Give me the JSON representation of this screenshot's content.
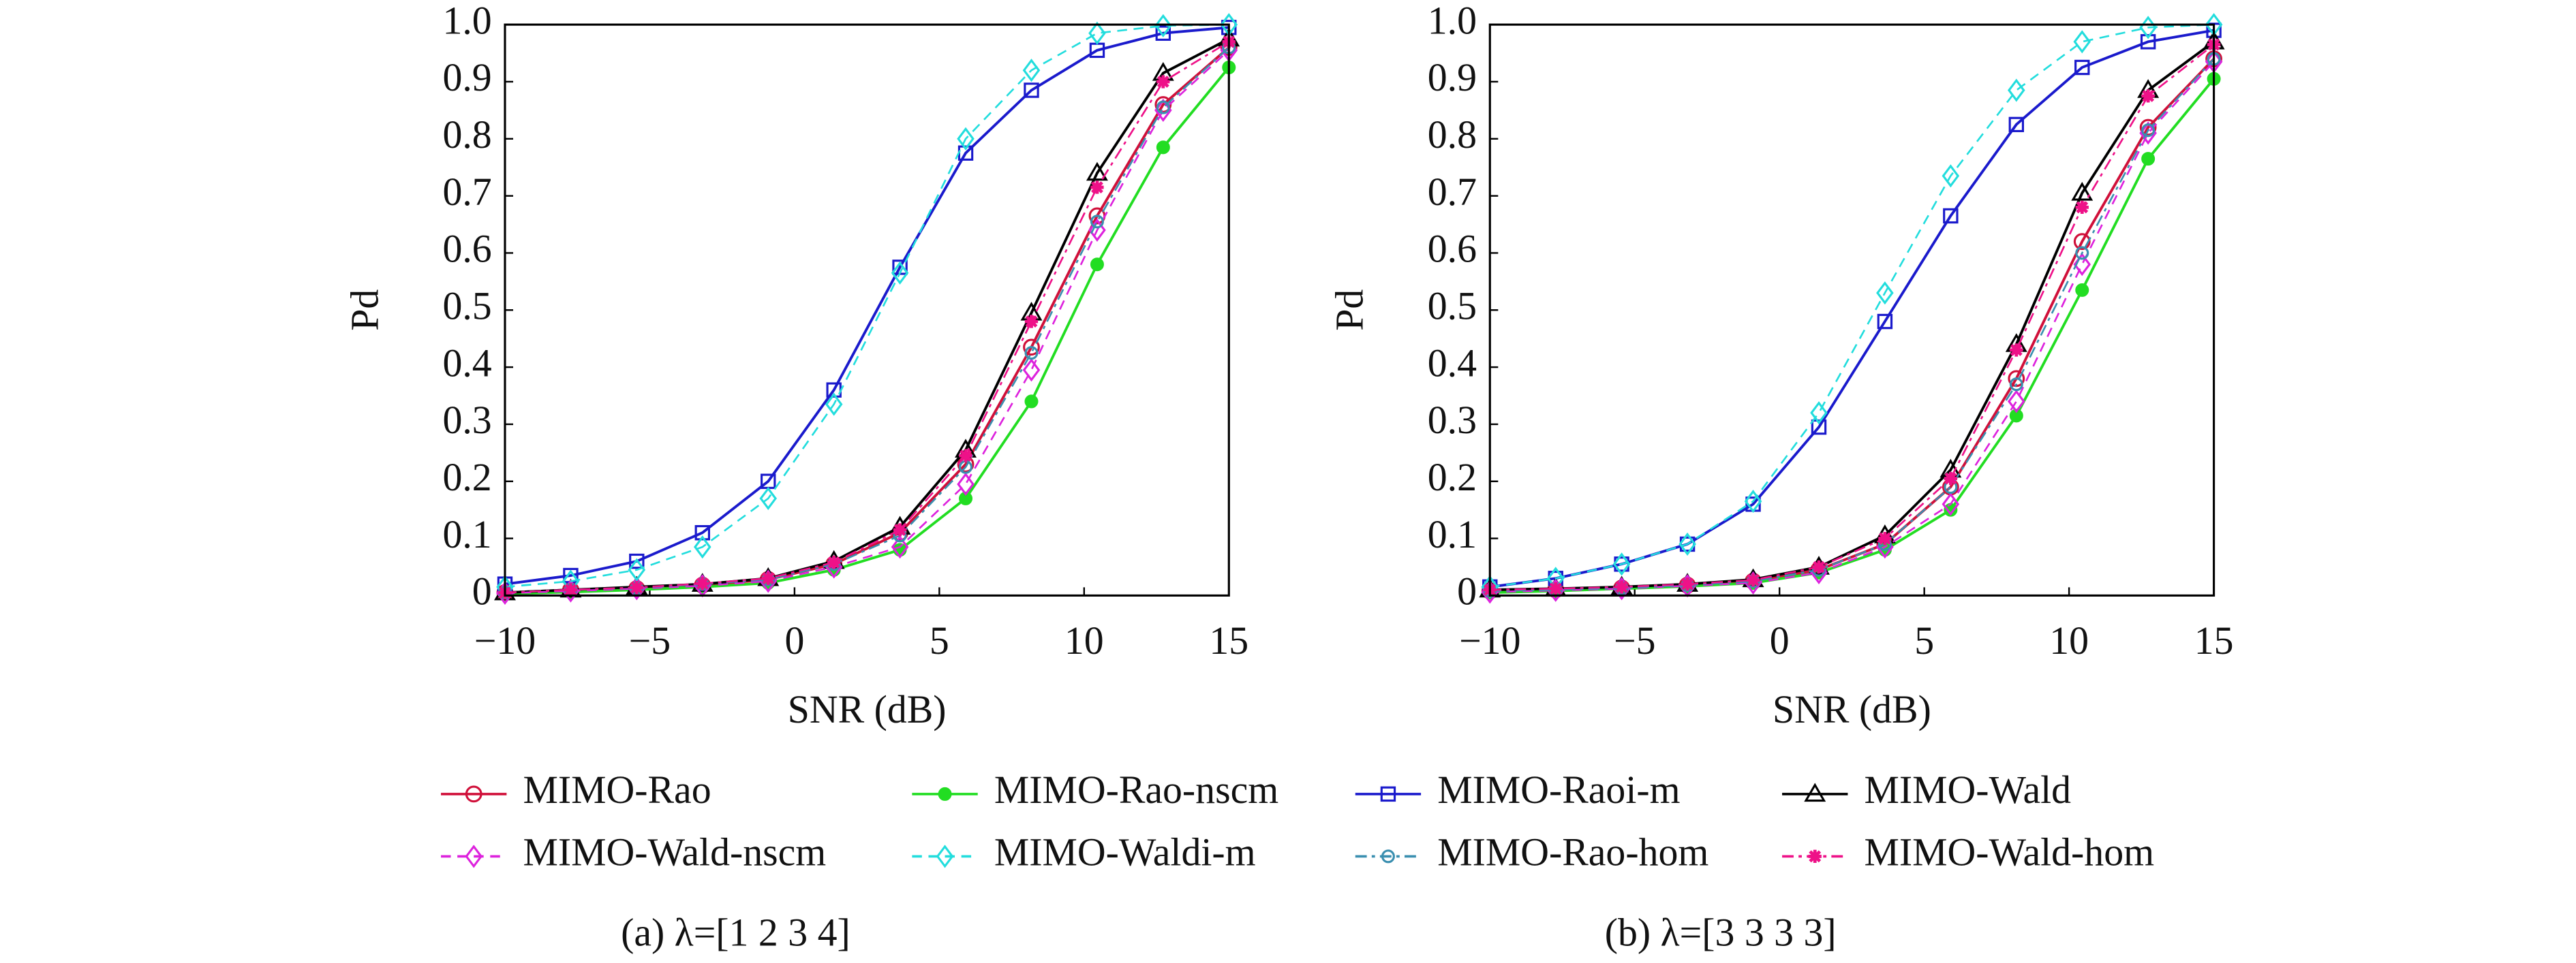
{
  "chart_data": [
    {
      "type": "line",
      "caption": "(a) λ=[1 2 3 4]",
      "xlabel": "SNR (dB)",
      "ylabel": "Pd",
      "x": [
        -10,
        -7.73,
        -5.45,
        -3.18,
        -0.91,
        1.36,
        3.64,
        5.91,
        8.18,
        10.45,
        12.73,
        15
      ],
      "xlim": [
        -10,
        15
      ],
      "ylim": [
        0,
        1
      ],
      "xticks": [
        {
          "value": -10,
          "label": "−10"
        },
        {
          "value": -5,
          "label": "−5"
        },
        0,
        5,
        10,
        15
      ],
      "yticks": [
        0,
        0.1,
        0.2,
        0.3,
        0.4,
        0.5,
        0.6,
        0.7,
        0.8,
        0.9,
        {
          "value": 1,
          "label": "1.0"
        }
      ],
      "series": [
        {
          "name": "MIMO-Rao",
          "color": "#d0103a",
          "marker": "circle",
          "dash": "solid",
          "values": [
            0.005,
            0.01,
            0.012,
            0.018,
            0.028,
            0.055,
            0.11,
            0.23,
            0.435,
            0.665,
            0.86,
            0.96
          ]
        },
        {
          "name": "MIMO-Rao-nscm",
          "color": "#22dd22",
          "marker": "dot",
          "dash": "solid",
          "values": [
            0.003,
            0.006,
            0.01,
            0.015,
            0.022,
            0.045,
            0.08,
            0.17,
            0.34,
            0.58,
            0.785,
            0.925
          ]
        },
        {
          "name": "MIMO-Raoi-m",
          "color": "#1a1acc",
          "marker": "square",
          "dash": "solid",
          "values": [
            0.02,
            0.035,
            0.06,
            0.11,
            0.2,
            0.36,
            0.575,
            0.775,
            0.885,
            0.955,
            0.985,
            0.995
          ]
        },
        {
          "name": "MIMO-Wald",
          "color": "#000000",
          "marker": "triangle",
          "dash": "solid",
          "values": [
            0.005,
            0.01,
            0.015,
            0.02,
            0.03,
            0.06,
            0.12,
            0.255,
            0.495,
            0.74,
            0.915,
            0.975
          ]
        },
        {
          "name": "MIMO-Wald-nscm",
          "color": "#dd22dd",
          "marker": "diamond",
          "dash": "dashed",
          "values": [
            0.004,
            0.008,
            0.012,
            0.017,
            0.025,
            0.05,
            0.085,
            0.195,
            0.395,
            0.64,
            0.85,
            0.955
          ]
        },
        {
          "name": "MIMO-Waldi-m",
          "color": "#22dddd",
          "marker": "diamond",
          "dash": "dashed",
          "values": [
            0.015,
            0.025,
            0.045,
            0.085,
            0.17,
            0.335,
            0.565,
            0.8,
            0.92,
            0.985,
            0.998,
            1.0
          ]
        },
        {
          "name": "MIMO-Rao-hom",
          "color": "#3a8fb0",
          "marker": "smallcircle",
          "dash": "dashdot",
          "values": [
            0.005,
            0.01,
            0.013,
            0.02,
            0.028,
            0.055,
            0.105,
            0.225,
            0.425,
            0.655,
            0.855,
            0.96
          ]
        },
        {
          "name": "MIMO-Wald-hom",
          "color": "#ee1188",
          "marker": "star",
          "dash": "dashdot",
          "values": [
            0.005,
            0.01,
            0.014,
            0.021,
            0.03,
            0.058,
            0.115,
            0.245,
            0.48,
            0.715,
            0.9,
            0.97
          ]
        }
      ]
    },
    {
      "type": "line",
      "caption": "(b) λ=[3 3 3 3]",
      "xlabel": "SNR (dB)",
      "ylabel": "Pd",
      "x": [
        -10,
        -7.73,
        -5.45,
        -3.18,
        -0.91,
        1.36,
        3.64,
        5.91,
        8.18,
        10.45,
        12.73,
        15
      ],
      "xlim": [
        -10,
        15
      ],
      "ylim": [
        0,
        1
      ],
      "xticks": [
        {
          "value": -10,
          "label": "−10"
        },
        {
          "value": -5,
          "label": "−5"
        },
        0,
        5,
        10,
        15
      ],
      "yticks": [
        0,
        0.1,
        0.2,
        0.3,
        0.4,
        0.5,
        0.6,
        0.7,
        0.8,
        0.9,
        {
          "value": 1,
          "label": "1.0"
        }
      ],
      "series": [
        {
          "color": "#d0103a",
          "marker": "circle",
          "dash": "solid",
          "values": [
            0.008,
            0.01,
            0.013,
            0.018,
            0.025,
            0.045,
            0.09,
            0.19,
            0.38,
            0.62,
            0.82,
            0.94
          ]
        },
        {
          "color": "#22dd22",
          "marker": "dot",
          "dash": "solid",
          "values": [
            0.005,
            0.008,
            0.012,
            0.016,
            0.022,
            0.04,
            0.08,
            0.15,
            0.315,
            0.535,
            0.765,
            0.905
          ]
        },
        {
          "color": "#1a1acc",
          "marker": "square",
          "dash": "solid",
          "values": [
            0.015,
            0.03,
            0.055,
            0.09,
            0.16,
            0.295,
            0.48,
            0.665,
            0.825,
            0.925,
            0.97,
            0.99
          ]
        },
        {
          "color": "#000000",
          "marker": "triangle",
          "dash": "solid",
          "values": [
            0.01,
            0.012,
            0.015,
            0.02,
            0.028,
            0.05,
            0.105,
            0.22,
            0.44,
            0.705,
            0.885,
            0.97
          ]
        },
        {
          "color": "#dd22dd",
          "marker": "diamond",
          "dash": "dashed",
          "values": [
            0.006,
            0.009,
            0.012,
            0.017,
            0.022,
            0.04,
            0.085,
            0.16,
            0.34,
            0.58,
            0.81,
            0.935
          ]
        },
        {
          "color": "#22dddd",
          "marker": "diamond",
          "dash": "dashed",
          "values": [
            0.015,
            0.03,
            0.055,
            0.09,
            0.165,
            0.32,
            0.53,
            0.735,
            0.885,
            0.97,
            0.995,
            1.0
          ]
        },
        {
          "color": "#3a8fb0",
          "marker": "smallcircle",
          "dash": "dashdot",
          "values": [
            0.008,
            0.01,
            0.013,
            0.018,
            0.025,
            0.045,
            0.09,
            0.19,
            0.37,
            0.6,
            0.815,
            0.94
          ]
        },
        {
          "color": "#ee1188",
          "marker": "star",
          "dash": "dashdot",
          "values": [
            0.01,
            0.012,
            0.015,
            0.02,
            0.027,
            0.05,
            0.1,
            0.205,
            0.43,
            0.68,
            0.875,
            0.965
          ]
        }
      ]
    }
  ]
}
